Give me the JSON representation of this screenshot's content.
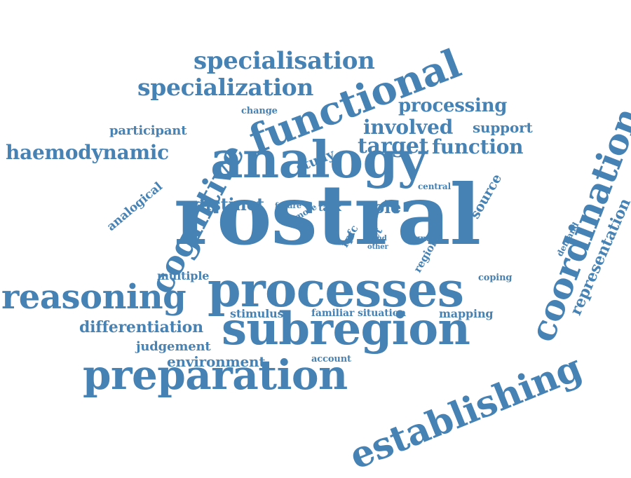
{
  "color": "#4682b4",
  "words": [
    {
      "text": "rostral"
    },
    {
      "text": "analogy"
    },
    {
      "text": "processes"
    },
    {
      "text": "subregion"
    },
    {
      "text": "functional"
    },
    {
      "text": "coordination"
    },
    {
      "text": "establishing"
    },
    {
      "text": "preparation"
    },
    {
      "text": "reasoning"
    },
    {
      "text": "cognitive"
    },
    {
      "text": "specialisation"
    },
    {
      "text": "specialization"
    },
    {
      "text": "haemodynamic"
    },
    {
      "text": "processing"
    },
    {
      "text": "involved"
    },
    {
      "text": "target"
    },
    {
      "text": "function"
    },
    {
      "text": "support"
    },
    {
      "text": "representation"
    },
    {
      "text": "differentiation"
    },
    {
      "text": "environment"
    },
    {
      "text": "judgement"
    },
    {
      "text": "participant"
    },
    {
      "text": "distinct"
    },
    {
      "text": "role"
    },
    {
      "text": "source"
    },
    {
      "text": "study"
    },
    {
      "text": "analogical"
    },
    {
      "text": "multiple"
    },
    {
      "text": "stimulus"
    },
    {
      "text": "familiar"
    },
    {
      "text": "situation"
    },
    {
      "text": "mapping"
    },
    {
      "text": "coping"
    },
    {
      "text": "region"
    },
    {
      "text": "demand"
    },
    {
      "text": "account"
    },
    {
      "text": "change"
    },
    {
      "text": "central"
    },
    {
      "text": "task"
    },
    {
      "text": "more"
    },
    {
      "text": "future"
    },
    {
      "text": "rpfc"
    },
    {
      "text": "set"
    },
    {
      "text": "hand"
    },
    {
      "text": "other"
    },
    {
      "text": "signal"
    }
  ]
}
